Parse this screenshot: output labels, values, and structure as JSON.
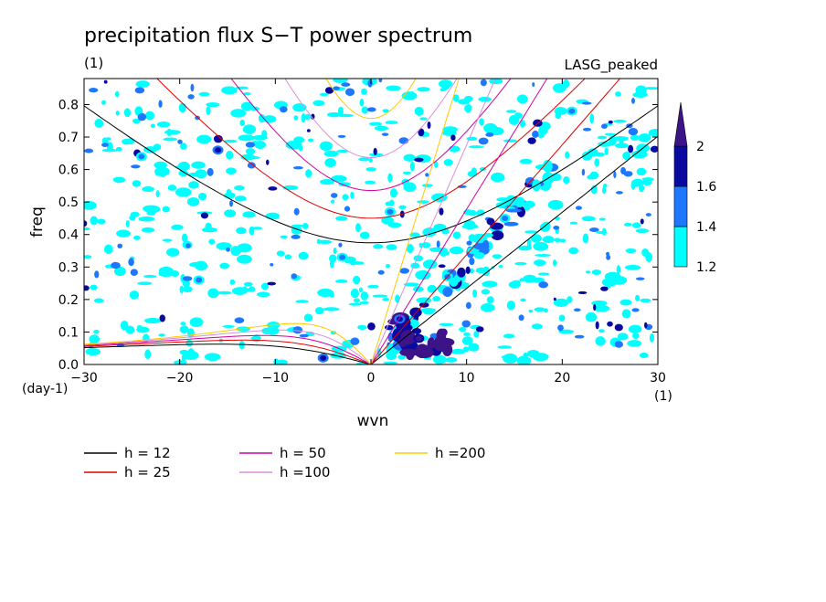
{
  "chart_data": {
    "type": "heatmap",
    "title": "precipitation flux S−T power spectrum",
    "subtitle_left": "(1)",
    "subtitle_right": "LASG_peaked",
    "xlabel": "wvn",
    "ylabel": "freq",
    "x_units": "(1)",
    "y_units": "(day-1)",
    "xlim": [
      -30,
      30
    ],
    "ylim": [
      0,
      0.88
    ],
    "x_ticks": [
      -30,
      -20,
      -10,
      0,
      10,
      20,
      30
    ],
    "x_tick_labels": [
      "−30",
      "−20",
      "−10",
      "0",
      "10",
      "20",
      "30"
    ],
    "y_ticks": [
      0.0,
      0.1,
      0.2,
      0.3,
      0.4,
      0.5,
      0.6,
      0.7,
      0.8
    ],
    "y_tick_labels": [
      "0.0",
      "0.1",
      "0.2",
      "0.3",
      "0.4",
      "0.5",
      "0.6",
      "0.7",
      "0.8"
    ],
    "colorbar": {
      "levels": [
        1.2,
        1.4,
        1.6,
        2
      ],
      "labels": [
        "1.2",
        "1.4",
        "1.6",
        "2"
      ],
      "colors": [
        "#00ffff",
        "#1e78ff",
        "#0a0aa0",
        "#3c1488"
      ]
    },
    "dispersion_curves": [
      {
        "name": "h = 12",
        "h": 12,
        "color": "#000000"
      },
      {
        "name": "h = 25",
        "h": 25,
        "color": "#e00000"
      },
      {
        "name": "h = 50",
        "h": 50,
        "color": "#d000a0"
      },
      {
        "name": "h =100",
        "h": 100,
        "color": "#d890d8"
      },
      {
        "name": "h =200",
        "h": 200,
        "color": "#ffc800"
      }
    ],
    "peak_regions": [
      {
        "wvn": 5,
        "freq": 0.08,
        "value": 2.0
      },
      {
        "wvn": 3,
        "freq": 0.14,
        "value": 1.8
      },
      {
        "wvn": 8,
        "freq": 0.27,
        "value": 1.6
      },
      {
        "wvn": 14,
        "freq": 0.45,
        "value": 1.6
      },
      {
        "wvn": -16,
        "freq": 0.66,
        "value": 1.8
      },
      {
        "wvn": -3,
        "freq": 0.33,
        "value": 1.6
      },
      {
        "wvn": -18,
        "freq": 0.26,
        "value": 1.6
      },
      {
        "wvn": 2,
        "freq": 0.47,
        "value": 1.6
      },
      {
        "wvn": -24,
        "freq": 0.64,
        "value": 1.6
      },
      {
        "wvn": 21,
        "freq": 0.78,
        "value": 1.6
      },
      {
        "wvn": -5,
        "freq": 0.02,
        "value": 1.8
      }
    ],
    "grid": false,
    "legend_position": "bottom"
  }
}
